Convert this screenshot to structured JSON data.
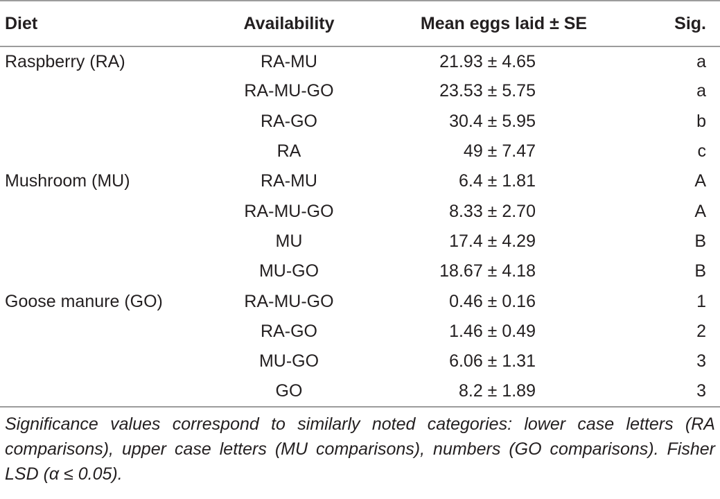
{
  "table": {
    "headers": {
      "diet": "Diet",
      "availability": "Availability",
      "mean": "Mean eggs laid ± SE",
      "sig": "Sig."
    },
    "rows": [
      {
        "diet": "Raspberry (RA)",
        "availability": "RA-MU",
        "mean": "21.93 ± 4.65",
        "sig": "a"
      },
      {
        "diet": "",
        "availability": "RA-MU-GO",
        "mean": "23.53 ± 5.75",
        "sig": "a"
      },
      {
        "diet": "",
        "availability": "RA-GO",
        "mean": "30.4 ± 5.95",
        "sig": "b"
      },
      {
        "diet": "",
        "availability": "RA",
        "mean": "49 ± 7.47",
        "sig": "c"
      },
      {
        "diet": "Mushroom (MU)",
        "availability": "RA-MU",
        "mean": "6.4 ± 1.81",
        "sig": "A"
      },
      {
        "diet": "",
        "availability": "RA-MU-GO",
        "mean": "8.33 ± 2.70",
        "sig": "A"
      },
      {
        "diet": "",
        "availability": "MU",
        "mean": "17.4 ± 4.29",
        "sig": "B"
      },
      {
        "diet": "",
        "availability": "MU-GO",
        "mean": "18.67 ± 4.18",
        "sig": "B"
      },
      {
        "diet": "Goose manure (GO)",
        "availability": "RA-MU-GO",
        "mean": "0.46 ± 0.16",
        "sig": "1"
      },
      {
        "diet": "",
        "availability": "RA-GO",
        "mean": "1.46 ± 0.49",
        "sig": "2"
      },
      {
        "diet": "",
        "availability": "MU-GO",
        "mean": "6.06 ± 1.31",
        "sig": "3"
      },
      {
        "diet": "",
        "availability": "GO",
        "mean": "8.2 ± 1.89",
        "sig": "3"
      }
    ]
  },
  "note": "Significance values correspond to similarly noted categories: lower case letters (RA comparisons), upper case letters (MU comparisons), numbers (GO comparisons). Fisher LSD (α ≤ 0.05)."
}
